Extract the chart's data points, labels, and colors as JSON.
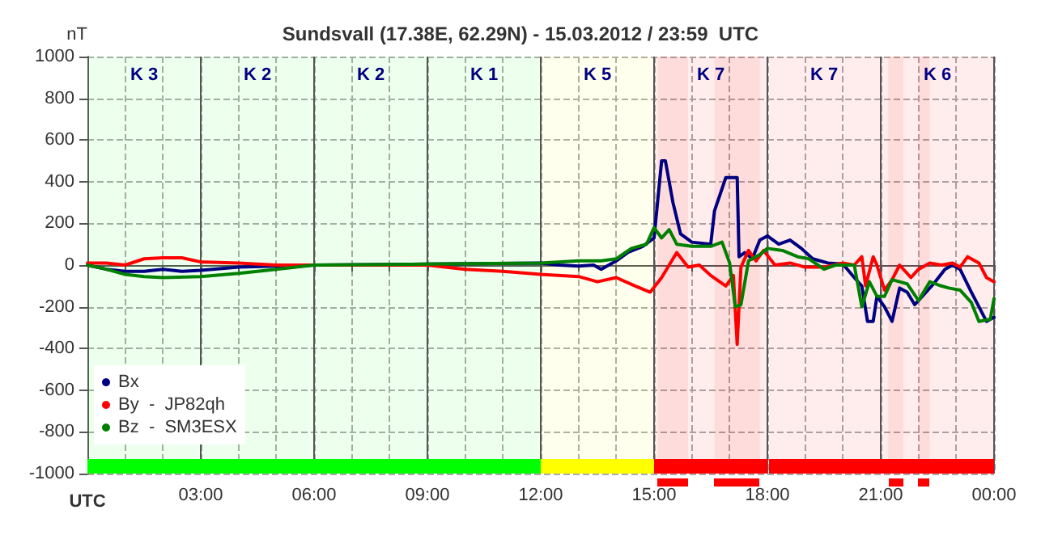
{
  "chart_data": {
    "type": "line",
    "title": "Sundsvall (17.38E, 62.29N) - 15.03.2012 / 23:59  UTC",
    "xlabel": "UTC",
    "ylabel": "nT",
    "xlim": [
      0,
      24
    ],
    "ylim": [
      -1000,
      1000
    ],
    "xticks": [
      {
        "value": 0,
        "label": null
      },
      {
        "value": 1,
        "label": null
      },
      {
        "value": 2,
        "label": null
      },
      {
        "value": 3,
        "label": "03:00"
      },
      {
        "value": 4,
        "label": null
      },
      {
        "value": 5,
        "label": null
      },
      {
        "value": 6,
        "label": "06:00"
      },
      {
        "value": 7,
        "label": null
      },
      {
        "value": 8,
        "label": null
      },
      {
        "value": 9,
        "label": "09:00"
      },
      {
        "value": 10,
        "label": null
      },
      {
        "value": 11,
        "label": null
      },
      {
        "value": 12,
        "label": "12:00"
      },
      {
        "value": 13,
        "label": null
      },
      {
        "value": 14,
        "label": null
      },
      {
        "value": 15,
        "label": "15:00"
      },
      {
        "value": 16,
        "label": null
      },
      {
        "value": 17,
        "label": null
      },
      {
        "value": 18,
        "label": "18:00"
      },
      {
        "value": 19,
        "label": null
      },
      {
        "value": 20,
        "label": null
      },
      {
        "value": 21,
        "label": "21:00"
      },
      {
        "value": 22,
        "label": null
      },
      {
        "value": 23,
        "label": null
      },
      {
        "value": 24,
        "label": "00:00"
      }
    ],
    "yticks": [
      -1000,
      -800,
      -600,
      -400,
      -200,
      0,
      200,
      400,
      600,
      800,
      1000
    ],
    "grid": true,
    "legend": "bottom left",
    "marker": "none",
    "line_style": "solid",
    "annotations": [
      "K 3",
      "K 2",
      "K 2",
      "K 1",
      "K 5",
      "K 7",
      "K 7",
      "K 6"
    ],
    "bands": [
      {
        "axis": "x",
        "from": 0,
        "to": 12,
        "color": "#00ff00"
      },
      {
        "axis": "x",
        "from": 12,
        "to": 15,
        "color": "#ffff00"
      },
      {
        "axis": "x",
        "from": 15,
        "to": 18,
        "color": "#ff0000"
      },
      {
        "axis": "x",
        "from": 18.05,
        "to": 24,
        "color": "#ff0000"
      },
      {
        "axis": "x",
        "from": 15.1,
        "to": 15.9,
        "color": "#ff0000"
      },
      {
        "axis": "x",
        "from": 16.6,
        "to": 17.8,
        "color": "#ff0000"
      },
      {
        "axis": "x",
        "from": 21.2,
        "to": 21.6,
        "color": "#ff0000"
      },
      {
        "axis": "x",
        "from": 22.0,
        "to": 22.3,
        "color": "#ff0000"
      }
    ],
    "series": [
      {
        "name": "Bx",
        "color": "#000080",
        "x": [
          0,
          0.5,
          1,
          1.5,
          2,
          2.5,
          3,
          4,
          5,
          6,
          9,
          12,
          12.5,
          13,
          13.4,
          13.6,
          14,
          14.3,
          14.7,
          15,
          15.2,
          15.3,
          15.5,
          15.7,
          16,
          16.5,
          16.6,
          16.9,
          17.2,
          17.25,
          17.4,
          17.6,
          17.8,
          18,
          18.3,
          18.6,
          18.9,
          19.2,
          19.6,
          20,
          20.3,
          20.5,
          20.65,
          20.8,
          20.9,
          21.1,
          21.3,
          21.5,
          21.7,
          21.9,
          22.1,
          22.4,
          22.7,
          22.9,
          23.1,
          23.4,
          23.6,
          23.8,
          24
        ],
        "values": [
          0,
          -20,
          -30,
          -30,
          -20,
          -30,
          -25,
          -10,
          -5,
          0,
          5,
          10,
          0,
          -5,
          0,
          -20,
          20,
          60,
          90,
          130,
          500,
          500,
          300,
          150,
          110,
          100,
          260,
          420,
          420,
          40,
          60,
          30,
          120,
          140,
          100,
          120,
          80,
          30,
          10,
          5,
          -60,
          -100,
          -270,
          -270,
          -150,
          -200,
          -270,
          -110,
          -130,
          -190,
          -150,
          -90,
          -20,
          0,
          -20,
          -130,
          -200,
          -270,
          -250
        ]
      },
      {
        "name": "By  -  JP82qh",
        "color": "#ff0000",
        "x": [
          0,
          0.5,
          1,
          1.5,
          2,
          2.5,
          3,
          4,
          5,
          6,
          9,
          10,
          11,
          12,
          13,
          13.5,
          14,
          14.5,
          14.9,
          15.2,
          15.4,
          15.6,
          15.9,
          16.2,
          16.5,
          16.9,
          17.1,
          17.2,
          17.3,
          17.5,
          17.7,
          17.9,
          18.2,
          18.6,
          19,
          19.5,
          20,
          20.3,
          20.5,
          20.6,
          20.8,
          20.9,
          21.1,
          21.3,
          21.5,
          21.8,
          22,
          22.3,
          22.6,
          22.9,
          23.1,
          23.3,
          23.6,
          23.8,
          24
        ],
        "values": [
          10,
          10,
          0,
          30,
          35,
          35,
          15,
          10,
          0,
          0,
          0,
          -20,
          -30,
          -45,
          -55,
          -80,
          -60,
          -100,
          -130,
          -60,
          0,
          60,
          -10,
          0,
          -50,
          -100,
          -50,
          -380,
          -10,
          70,
          20,
          70,
          0,
          10,
          -10,
          -10,
          10,
          0,
          40,
          -100,
          40,
          0,
          -120,
          -70,
          0,
          -60,
          -20,
          10,
          0,
          10,
          -10,
          40,
          10,
          -60,
          -80
        ]
      },
      {
        "name": "Bz  -  SM3ESX",
        "color": "#008000",
        "x": [
          0,
          0.5,
          1,
          1.5,
          2,
          3,
          4,
          5,
          6,
          9,
          12,
          13,
          13.6,
          14,
          14.4,
          14.8,
          15,
          15.2,
          15.4,
          15.6,
          16,
          16.5,
          16.8,
          17,
          17.15,
          17.3,
          17.5,
          17.8,
          18,
          18.4,
          18.8,
          19.1,
          19.5,
          19.8,
          20,
          20.3,
          20.5,
          20.7,
          20.9,
          21.1,
          21.3,
          21.5,
          21.7,
          22,
          22.3,
          22.6,
          22.8,
          23.1,
          23.4,
          23.6,
          23.9,
          24
        ],
        "values": [
          0,
          -20,
          -45,
          -55,
          -60,
          -55,
          -40,
          -20,
          0,
          5,
          10,
          20,
          20,
          30,
          80,
          100,
          180,
          130,
          170,
          100,
          90,
          90,
          110,
          10,
          -200,
          -190,
          20,
          50,
          80,
          70,
          40,
          30,
          -20,
          0,
          0,
          0,
          -200,
          -80,
          -150,
          -150,
          -70,
          -80,
          -90,
          -170,
          -80,
          -100,
          -110,
          -120,
          -180,
          -270,
          -260,
          -160
        ]
      }
    ]
  }
}
